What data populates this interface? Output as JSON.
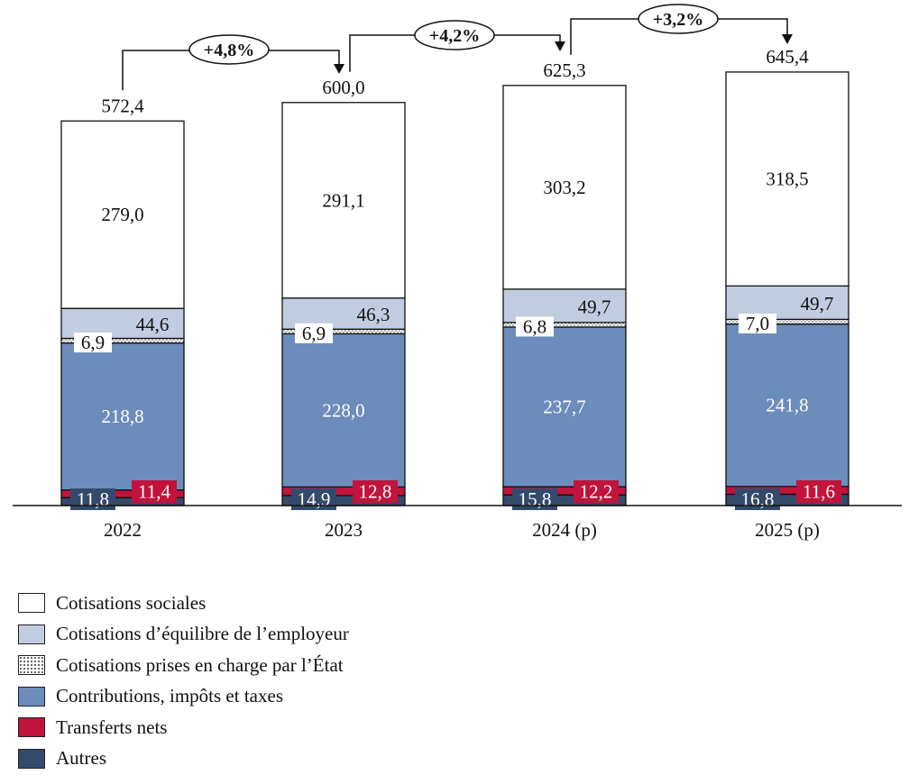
{
  "colors": {
    "cotisations_sociales": "#ffffff",
    "cotisations_equilibre": "#c2cce0",
    "cotisations_etat": "#ffffff",
    "contributions": "#6c8cbb",
    "transferts": "#c0143c",
    "autres": "#344a6b"
  },
  "legend": [
    {
      "key": "cotisations_sociales",
      "label": "Cotisations sociales",
      "pattern": "none"
    },
    {
      "key": "cotisations_equilibre",
      "label": "Cotisations d’équilibre de l’employeur",
      "pattern": "none"
    },
    {
      "key": "cotisations_etat",
      "label": "Cotisations prises en charge par l’État",
      "pattern": "dots"
    },
    {
      "key": "contributions",
      "label": "Contributions, impôts et taxes",
      "pattern": "none"
    },
    {
      "key": "transferts",
      "label": "Transferts nets",
      "pattern": "none"
    },
    {
      "key": "autres",
      "label": "Autres",
      "pattern": "none"
    }
  ],
  "chart_data": {
    "type": "bar",
    "stacked": true,
    "categories": [
      "2022",
      "2023",
      "2024 (p)",
      "2025 (p)"
    ],
    "series": [
      {
        "key": "autres",
        "name": "Autres",
        "values": [
          11.8,
          14.9,
          15.8,
          16.8
        ],
        "labels": [
          "11,8",
          "14,9",
          "15,8",
          "16,8"
        ]
      },
      {
        "key": "transferts",
        "name": "Transferts nets",
        "values": [
          11.4,
          12.8,
          12.2,
          11.6
        ],
        "labels": [
          "11,4",
          "12,8",
          "12,2",
          "11,6"
        ]
      },
      {
        "key": "contributions",
        "name": "Contributions, impôts et taxes",
        "values": [
          218.8,
          228.0,
          237.7,
          241.8
        ],
        "labels": [
          "218,8",
          "228,0",
          "237,7",
          "241,8"
        ]
      },
      {
        "key": "cotisations_etat",
        "name": "Cotisations prises en charge par l’État",
        "values": [
          6.9,
          6.9,
          6.8,
          7.0
        ],
        "labels": [
          "6,9",
          "6,9",
          "6,8",
          "7,0"
        ]
      },
      {
        "key": "cotisations_equilibre",
        "name": "Cotisations d’équilibre de l’employeur",
        "values": [
          44.6,
          46.3,
          49.7,
          49.7
        ],
        "labels": [
          "44,6",
          "46,3",
          "49,7",
          "49,7"
        ]
      },
      {
        "key": "cotisations_sociales",
        "name": "Cotisations sociales",
        "values": [
          279.0,
          291.1,
          303.2,
          318.5
        ],
        "labels": [
          "279,0",
          "291,1",
          "303,2",
          "318,5"
        ]
      }
    ],
    "totals": [
      572.4,
      600.0,
      625.3,
      645.4
    ],
    "total_labels": [
      "572,4",
      "600,0",
      "625,3",
      "645,4"
    ],
    "growth": [
      "+4,8%",
      "+4,2%",
      "+3,2%"
    ],
    "ylim": [
      0,
      700
    ],
    "grid": false,
    "legend_position": "bottom-left"
  }
}
